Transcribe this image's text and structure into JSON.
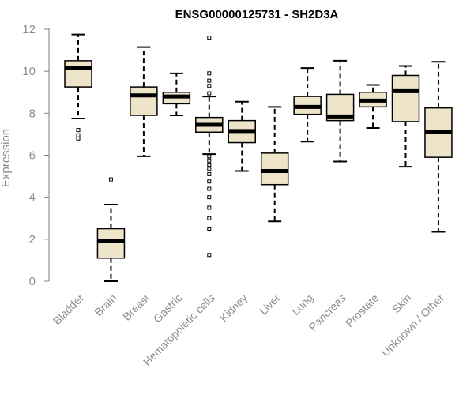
{
  "chart_data": {
    "type": "boxplot",
    "title": "ENSG00000125731 - SH2D3A",
    "ylabel": "Expression",
    "ylim": [
      0,
      12
    ],
    "yticks": [
      0,
      2,
      4,
      6,
      8,
      10,
      12
    ],
    "box_fill": "#ede4c9",
    "categories": [
      "Bladder",
      "Brain",
      "Breast",
      "Gastric",
      "Hematopoietic cells",
      "Kidney",
      "Liver",
      "Lung",
      "Pancreas",
      "Prostate",
      "Skin",
      "Unknown / Other"
    ],
    "boxes": [
      {
        "q1": 9.25,
        "median": 10.15,
        "q3": 10.5,
        "whisker_low": 7.75,
        "whisker_high": 11.75,
        "outliers": [
          6.8,
          6.95,
          7.2
        ]
      },
      {
        "q1": 1.1,
        "median": 1.9,
        "q3": 2.5,
        "whisker_low": 0.0,
        "whisker_high": 3.65,
        "outliers": [
          4.85
        ]
      },
      {
        "q1": 7.9,
        "median": 8.85,
        "q3": 9.25,
        "whisker_low": 5.95,
        "whisker_high": 11.15,
        "outliers": []
      },
      {
        "q1": 8.45,
        "median": 8.8,
        "q3": 9.0,
        "whisker_low": 7.9,
        "whisker_high": 9.9,
        "outliers": []
      },
      {
        "q1": 7.1,
        "median": 7.45,
        "q3": 7.8,
        "whisker_low": 6.05,
        "whisker_high": 8.8,
        "outliers": [
          1.25,
          2.5,
          3.0,
          3.5,
          4.0,
          4.4,
          4.75,
          5.1,
          5.35,
          5.55,
          5.75,
          5.95,
          8.95,
          9.3,
          9.55,
          9.9,
          11.6
        ]
      },
      {
        "q1": 6.6,
        "median": 7.15,
        "q3": 7.65,
        "whisker_low": 5.25,
        "whisker_high": 8.55,
        "outliers": []
      },
      {
        "q1": 4.6,
        "median": 5.25,
        "q3": 6.1,
        "whisker_low": 2.85,
        "whisker_high": 8.3,
        "outliers": []
      },
      {
        "q1": 7.95,
        "median": 8.3,
        "q3": 8.8,
        "whisker_low": 6.65,
        "whisker_high": 10.15,
        "outliers": []
      },
      {
        "q1": 7.65,
        "median": 7.85,
        "q3": 8.9,
        "whisker_low": 5.7,
        "whisker_high": 10.5,
        "outliers": []
      },
      {
        "q1": 8.3,
        "median": 8.6,
        "q3": 9.0,
        "whisker_low": 7.3,
        "whisker_high": 9.35,
        "outliers": []
      },
      {
        "q1": 7.6,
        "median": 9.05,
        "q3": 9.8,
        "whisker_low": 5.45,
        "whisker_high": 10.25,
        "outliers": []
      },
      {
        "q1": 5.9,
        "median": 7.1,
        "q3": 8.25,
        "whisker_low": 2.35,
        "whisker_high": 10.45,
        "outliers": []
      }
    ]
  }
}
